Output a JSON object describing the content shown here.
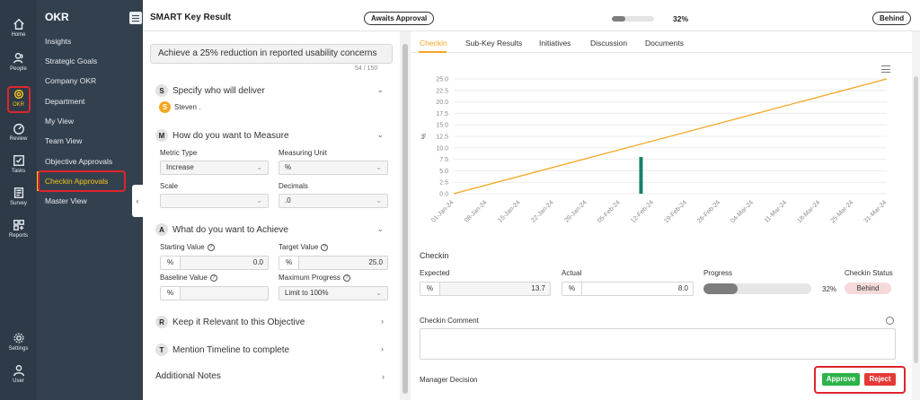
{
  "rail": {
    "items": [
      {
        "label": "Home",
        "icon": "home-icon"
      },
      {
        "label": "People",
        "icon": "people-icon"
      },
      {
        "label": "OKR",
        "icon": "okr-target-icon"
      },
      {
        "label": "Review",
        "icon": "review-gauge-icon"
      },
      {
        "label": "Tasks",
        "icon": "tasks-checkbox-icon"
      },
      {
        "label": "Survey",
        "icon": "survey-icon"
      },
      {
        "label": "Reports",
        "icon": "reports-grid-icon"
      },
      {
        "label": "Settings",
        "icon": "gear-icon"
      },
      {
        "label": "User",
        "icon": "user-icon"
      }
    ]
  },
  "subnav": {
    "title": "OKR",
    "items": [
      {
        "label": "Insights"
      },
      {
        "label": "Strategic Goals"
      },
      {
        "label": "Company OKR"
      },
      {
        "label": "Department"
      },
      {
        "label": "My View"
      },
      {
        "label": "Team View"
      },
      {
        "label": "Objective Approvals"
      },
      {
        "label": "Checkin Approvals"
      },
      {
        "label": "Master View"
      }
    ]
  },
  "header": {
    "title": "SMART Key Result",
    "approval_status": "Awaits Approval",
    "progress_percent": 32,
    "progress_label": "32%",
    "status": "Behind"
  },
  "form": {
    "kr_title": "Achieve a 25% reduction in reported usability concerns",
    "char_count": "54 / 150",
    "section_s": {
      "badge": "S",
      "label": "Specify who will deliver",
      "owner_initial": "S",
      "owner_name": "Steven ."
    },
    "section_m": {
      "badge": "M",
      "label": "How do you want to Measure",
      "metric_type_label": "Metric Type",
      "metric_type_value": "Increase",
      "measuring_unit_label": "Measuring Unit",
      "measuring_unit_value": "%",
      "scale_label": "Scale",
      "scale_value": "",
      "decimals_label": "Decimals",
      "decimals_value": ".0"
    },
    "section_a": {
      "badge": "A",
      "label": "What do you want to Achieve",
      "starting_value_label": "Starting Value",
      "starting_unit": "%",
      "starting_value": "0.0",
      "target_value_label": "Target Value",
      "target_unit": "%",
      "target_value": "25.0",
      "baseline_value_label": "Baseline Value",
      "baseline_unit": "%",
      "baseline_value": "",
      "max_progress_label": "Maximum Progress",
      "max_progress_value": "Limit to 100%"
    },
    "section_r": {
      "badge": "R",
      "label": "Keep it Relevant to this Objective"
    },
    "section_t": {
      "badge": "T",
      "label": "Mention Timeline to complete"
    },
    "additional_notes": "Additional Notes"
  },
  "tabs": [
    {
      "label": "Checkin"
    },
    {
      "label": "Sub-Key Results"
    },
    {
      "label": "Initiatives"
    },
    {
      "label": "Discussion"
    },
    {
      "label": "Documents"
    }
  ],
  "chart_data": {
    "type": "line",
    "title": "",
    "ylabel": "%",
    "xlabel": "",
    "ylim": [
      0,
      25
    ],
    "yticks": [
      "0.0",
      "2.5",
      "5.0",
      "7.5",
      "10.0",
      "12.5",
      "15.0",
      "17.5",
      "20.0",
      "22.5",
      "25.0"
    ],
    "x_categories": [
      "01-Jan-24",
      "08-Jan-24",
      "15-Jan-24",
      "22-Jan-24",
      "29-Jan-24",
      "05-Feb-24",
      "12-Feb-24",
      "19-Feb-24",
      "26-Feb-24",
      "04-Mar-24",
      "11-Mar-24",
      "18-Mar-24",
      "25-Mar-24",
      "31-Mar-24"
    ],
    "series": [
      {
        "type": "line",
        "color": "#f5a623",
        "points": [
          {
            "x": "01-Jan-24",
            "y": 0.0
          },
          {
            "x": "31-Mar-24",
            "y": 25.0
          }
        ]
      },
      {
        "type": "bar",
        "color": "#1a7f6e",
        "points": [
          {
            "x": "12-Feb-24",
            "y": 8.0
          }
        ]
      }
    ],
    "grid": true
  },
  "checkin": {
    "title": "Checkin",
    "expected_label": "Expected",
    "expected_unit": "%",
    "expected_value": "13.7",
    "actual_label": "Actual",
    "actual_unit": "%",
    "actual_value": "8.0",
    "progress_label": "Progress",
    "progress_percent": 32,
    "progress_text": "32%",
    "status_label": "Checkin Status",
    "status_value": "Behind",
    "comment_label": "Checkin Comment",
    "manager_label": "Manager Decision",
    "approve_label": "Approve",
    "reject_label": "Reject"
  }
}
